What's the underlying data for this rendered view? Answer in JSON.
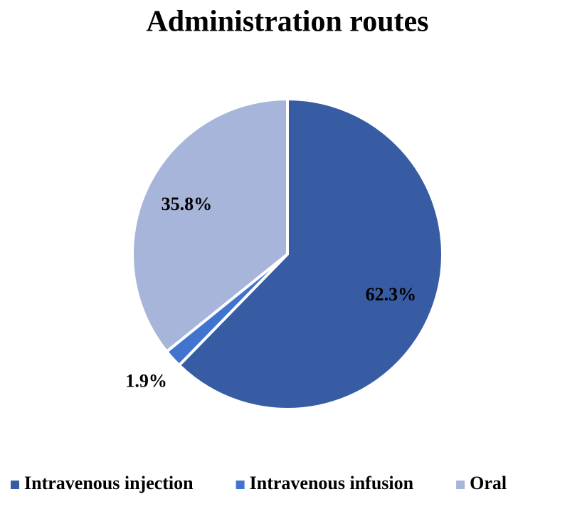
{
  "chart_data": {
    "type": "pie",
    "title": "Administration routes",
    "categories": [
      "Intravenous injection",
      "Intravenous infusion",
      "Oral"
    ],
    "values": [
      62.3,
      1.9,
      35.8
    ],
    "value_labels": [
      "62.3%",
      "1.9%",
      "35.8%"
    ],
    "colors": [
      "#385ca3",
      "#4174cf",
      "#a7b5db"
    ],
    "legend": "bottom"
  }
}
